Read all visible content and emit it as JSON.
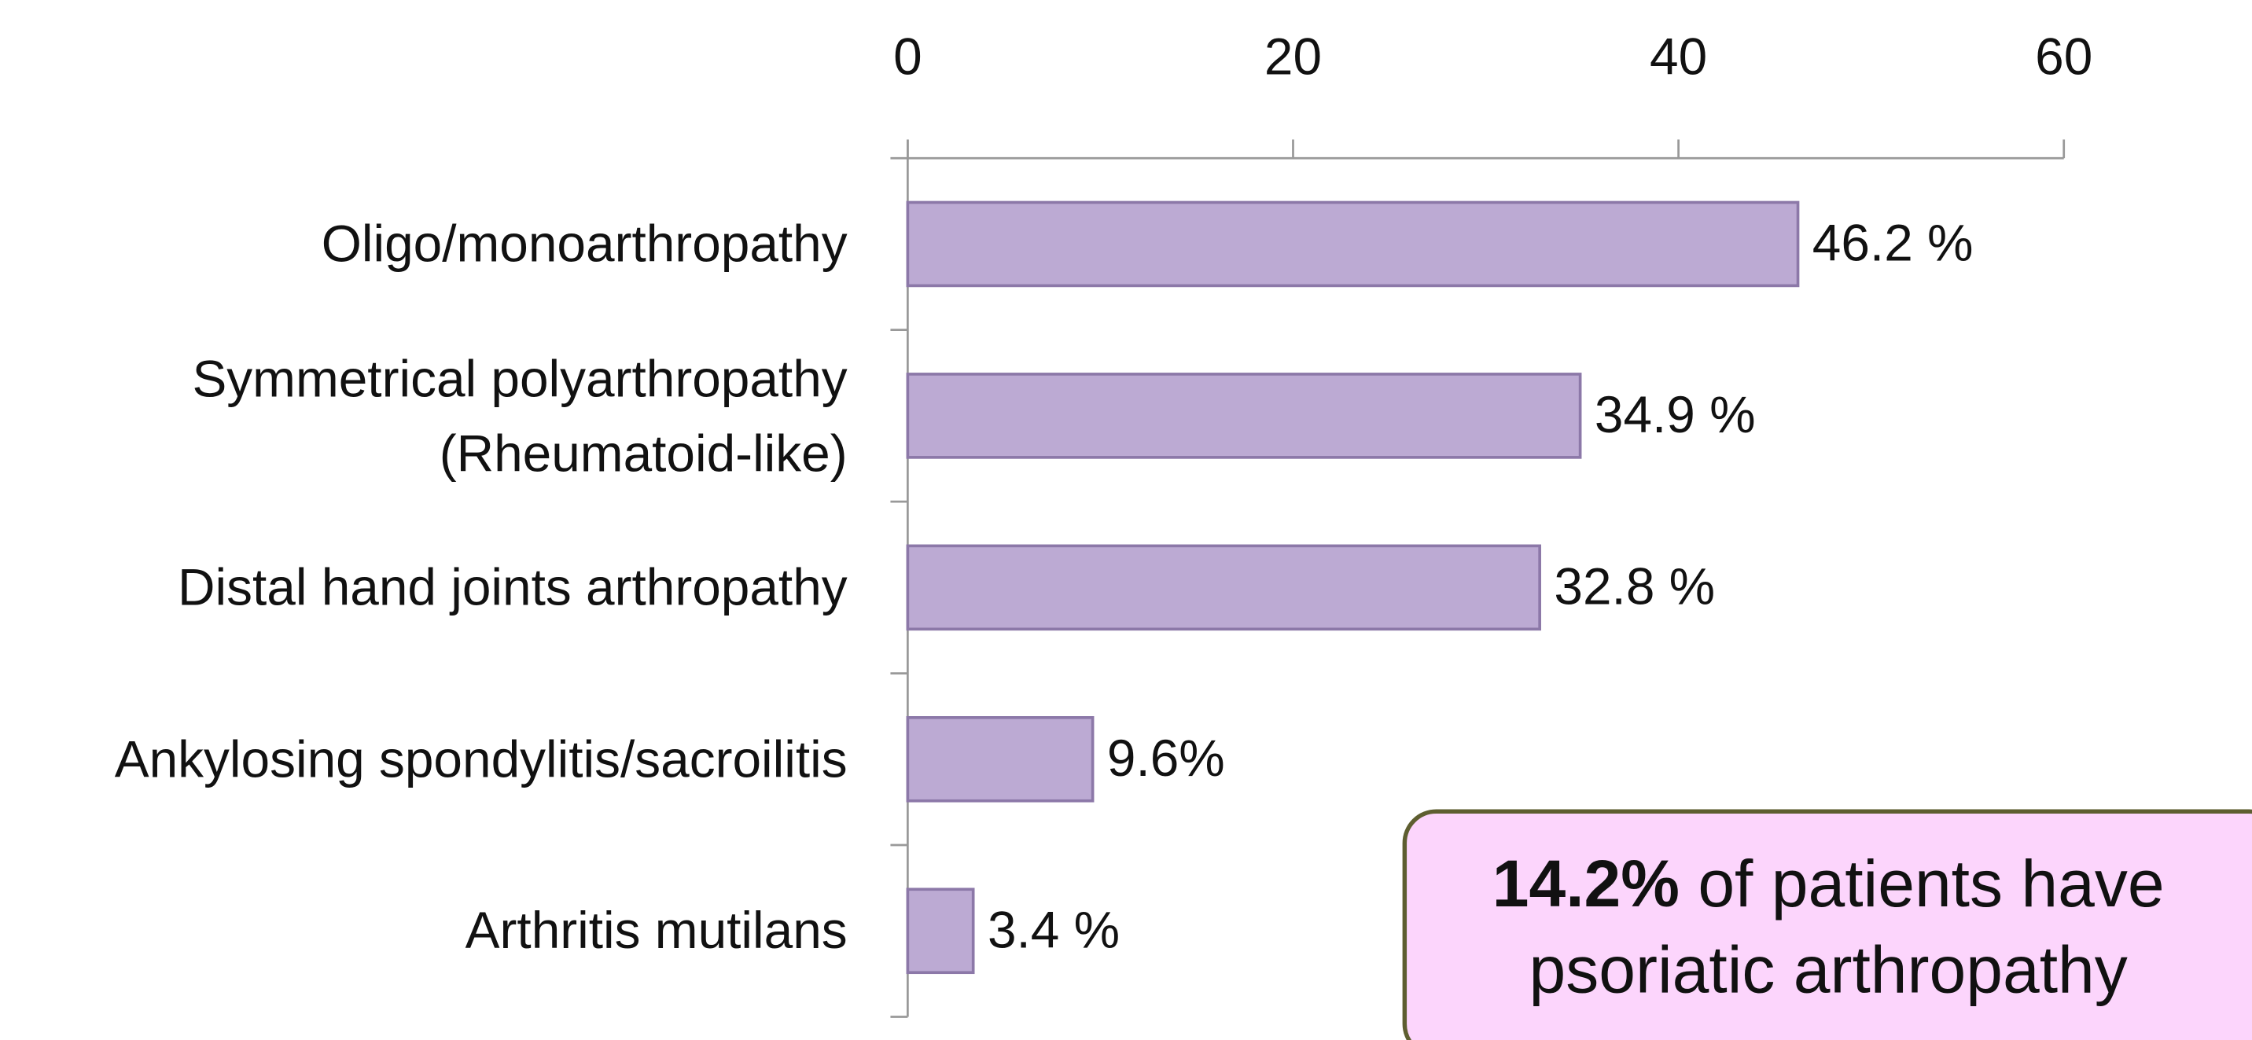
{
  "chart_data": {
    "type": "barh",
    "categories": [
      "Oligo/monoarthropathy",
      "Symmetrical polyarthropathy\n(Rheumatoid-like)",
      "Distal hand joints arthropathy",
      "Ankylosing spondylitis/sacroilitis",
      "Arthritis mutilans"
    ],
    "values": [
      46.2,
      34.9,
      32.8,
      9.6,
      3.4
    ],
    "value_labels": [
      "46.2 %",
      "34.9 %",
      "32.8 %",
      "9.6%",
      "3.4 %"
    ],
    "color": "#bcaad3",
    "xlim": [
      0,
      60
    ],
    "xticks": [
      0,
      20,
      40,
      60
    ],
    "annotation": {
      "highlight": "14.2%",
      "text": "of patients have psoriatic arthropathy"
    }
  }
}
